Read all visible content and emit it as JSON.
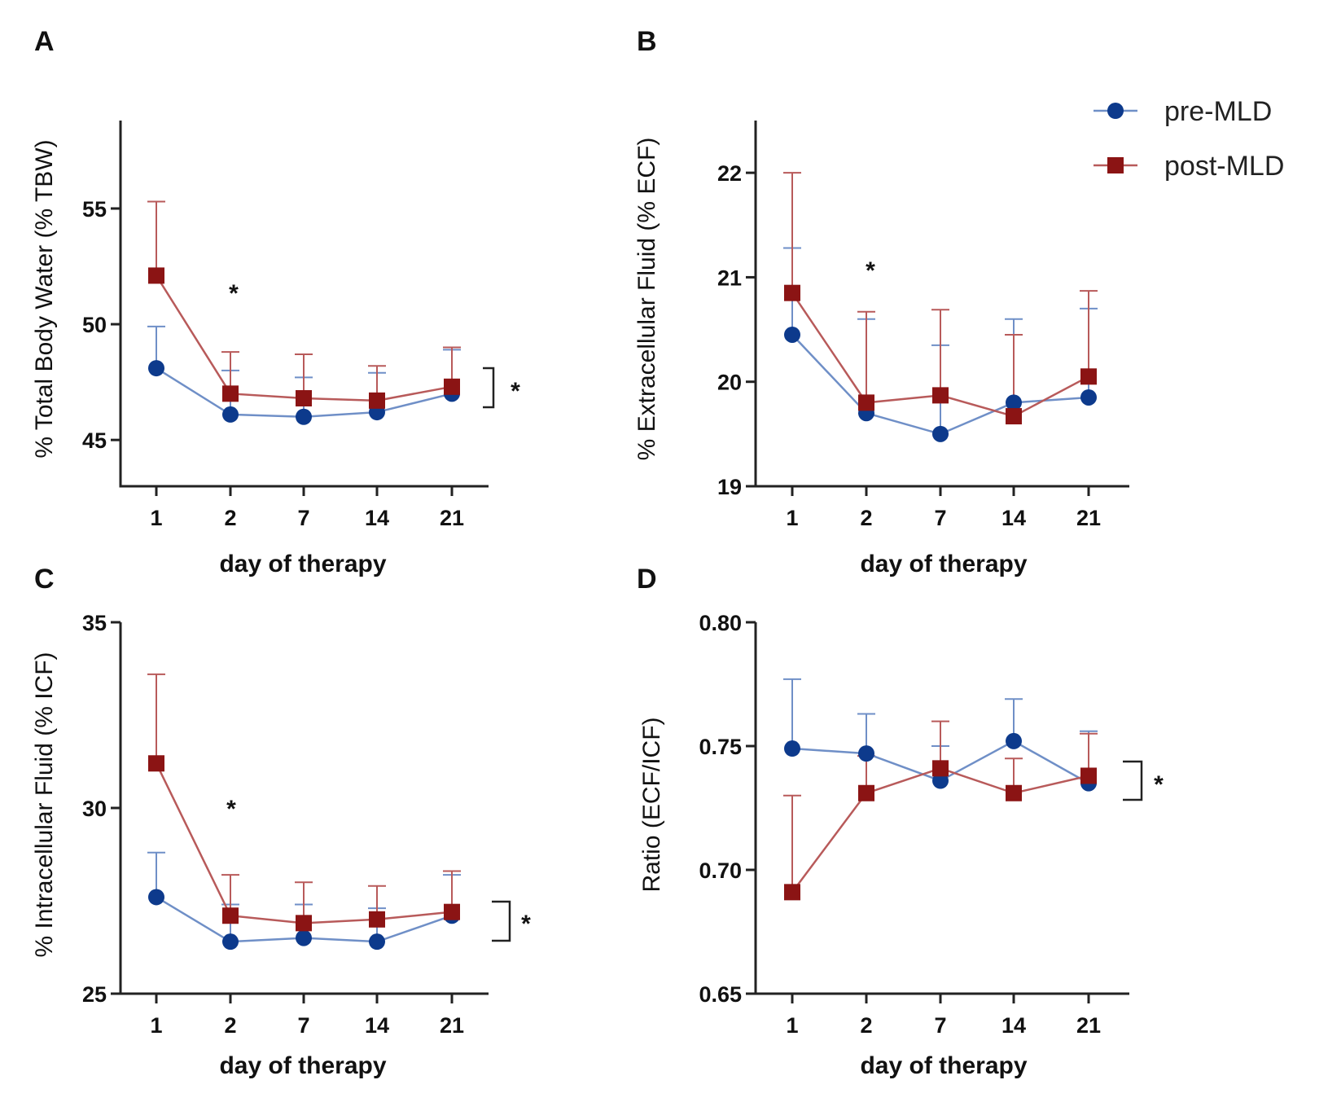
{
  "colors": {
    "pre": "#0d3a8c",
    "pre_line": "#6f8fc7",
    "post": "#8b1414",
    "post_line": "#b85a5a"
  },
  "legend": {
    "pre": "pre-MLD",
    "post": "post-MLD"
  },
  "chart_data": [
    {
      "panel": "A",
      "type": "line",
      "categories": [
        "1",
        "2",
        "7",
        "14",
        "21"
      ],
      "ylabel": "% Total Body Water (% TBW)",
      "xlabel": "day of therapy",
      "ylim": [
        43,
        58.8
      ],
      "yticks": [
        45,
        50,
        55
      ],
      "series": [
        {
          "name": "pre-MLD",
          "values": [
            48.1,
            46.1,
            46.0,
            46.2,
            47.0
          ],
          "err": [
            1.8,
            1.9,
            1.7,
            1.7,
            1.9
          ]
        },
        {
          "name": "post-MLD",
          "values": [
            52.1,
            47.0,
            46.8,
            46.7,
            47.3
          ],
          "err": [
            3.2,
            1.8,
            1.9,
            1.5,
            1.7
          ]
        }
      ],
      "star_label": "*",
      "bracket_label": "*"
    },
    {
      "panel": "B",
      "type": "line",
      "categories": [
        "1",
        "2",
        "7",
        "14",
        "21"
      ],
      "ylabel": "% Extracellular Fluid (% ECF)",
      "xlabel": "day of therapy",
      "ylim": [
        19,
        22.5
      ],
      "yticks": [
        19,
        20,
        21,
        22
      ],
      "series": [
        {
          "name": "pre-MLD",
          "values": [
            20.45,
            19.7,
            19.5,
            19.8,
            19.85
          ],
          "err": [
            0.83,
            0.9,
            0.85,
            0.8,
            0.85
          ]
        },
        {
          "name": "post-MLD",
          "values": [
            20.85,
            19.8,
            19.87,
            19.67,
            20.05
          ],
          "err": [
            1.15,
            0.87,
            0.82,
            0.78,
            0.82
          ]
        }
      ],
      "star_label": "*"
    },
    {
      "panel": "C",
      "type": "line",
      "categories": [
        "1",
        "2",
        "7",
        "14",
        "21"
      ],
      "ylabel": "% Intracellular Fluid (% ICF)",
      "xlabel": "day of therapy",
      "ylim": [
        25,
        35
      ],
      "yticks": [
        25,
        30,
        35
      ],
      "series": [
        {
          "name": "pre-MLD",
          "values": [
            27.6,
            26.4,
            26.5,
            26.4,
            27.1
          ],
          "err": [
            1.2,
            1.0,
            0.9,
            0.9,
            1.1
          ]
        },
        {
          "name": "post-MLD",
          "values": [
            31.2,
            27.1,
            26.9,
            27.0,
            27.2
          ],
          "err": [
            2.4,
            1.1,
            1.1,
            0.9,
            1.1
          ]
        }
      ],
      "star_label": "*",
      "bracket_label": "*"
    },
    {
      "panel": "D",
      "type": "line",
      "categories": [
        "1",
        "2",
        "7",
        "14",
        "21"
      ],
      "ylabel": "Ratio (ECF/ICF)",
      "xlabel": "day of therapy",
      "ylim": [
        0.65,
        0.8
      ],
      "yticks": [
        "0.65",
        "0.70",
        "0.75",
        "0.80"
      ],
      "series": [
        {
          "name": "pre-MLD",
          "values": [
            0.749,
            0.747,
            0.736,
            0.752,
            0.735
          ],
          "err": [
            0.028,
            0.016,
            0.014,
            0.017,
            0.021
          ]
        },
        {
          "name": "post-MLD",
          "values": [
            0.691,
            0.731,
            0.741,
            0.731,
            0.738
          ],
          "err": [
            0.039,
            0.015,
            0.019,
            0.014,
            0.017
          ]
        }
      ],
      "bracket_label": "*"
    }
  ]
}
